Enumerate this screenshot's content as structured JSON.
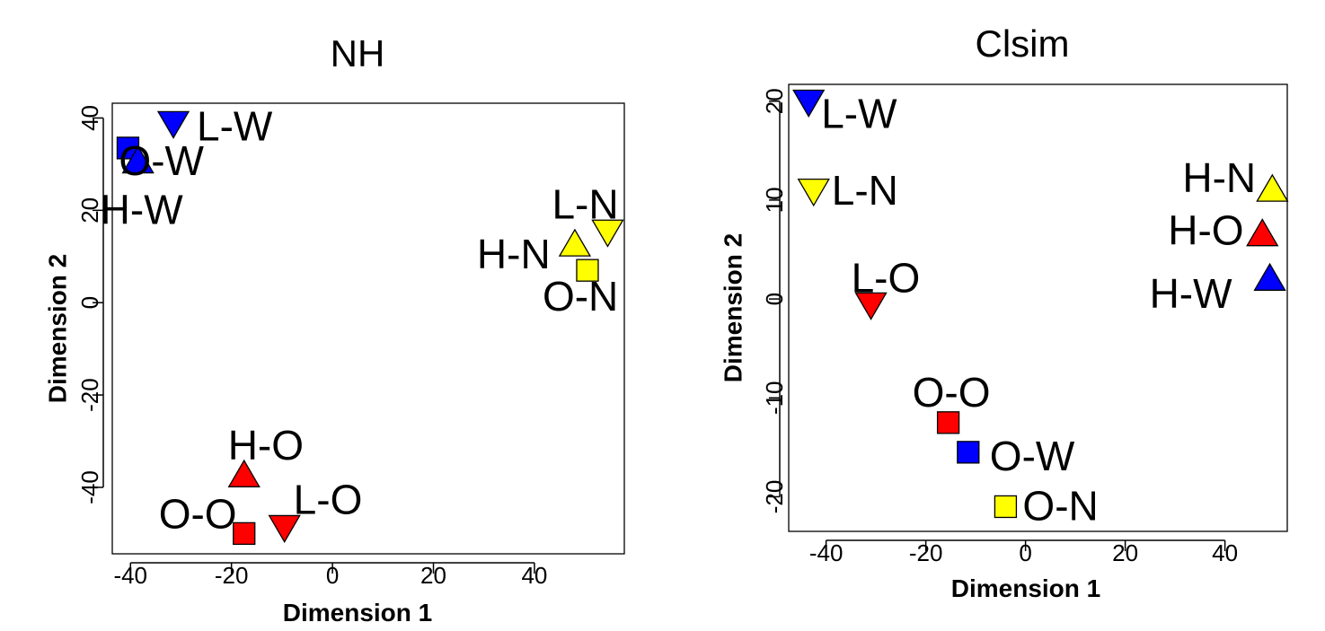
{
  "chart_data": [
    {
      "type": "scatter",
      "title": "NH",
      "xlabel": "Dimension 1",
      "ylabel": "Dimension 2",
      "xlim": [
        -43.6,
        57.8
      ],
      "ylim": [
        -54.4,
        43.2
      ],
      "xticks": [
        -40,
        -20,
        0,
        20,
        40
      ],
      "yticks": [
        -40,
        -20,
        0,
        20,
        40
      ],
      "x_tick_labels": [
        "-40",
        "-20",
        "0",
        "20",
        "40"
      ],
      "y_tick_labels": [
        "-40",
        "-20",
        "0",
        "20",
        "40"
      ],
      "grid": false,
      "points": [
        {
          "label": "L-W",
          "x": -31.5,
          "y": 39.0,
          "shape": "triangle-down",
          "color": "#0000FF"
        },
        {
          "label": "O-W",
          "x": -40.5,
          "y": 33.5,
          "shape": "square",
          "color": "#0000FF"
        },
        {
          "label": "H-W",
          "x": -38.5,
          "y": 30.5,
          "shape": "triangle-up",
          "color": "#0000FF"
        },
        {
          "label": "L-N",
          "x": 54.5,
          "y": 15.5,
          "shape": "triangle-down",
          "color": "#FFFF00"
        },
        {
          "label": "H-N",
          "x": 48.0,
          "y": 12.5,
          "shape": "triangle-up",
          "color": "#FFFF00"
        },
        {
          "label": "O-N",
          "x": 50.5,
          "y": 7.0,
          "shape": "square",
          "color": "#FFFF00"
        },
        {
          "label": "H-O",
          "x": -17.5,
          "y": -37.5,
          "shape": "triangle-up",
          "color": "#FF0000"
        },
        {
          "label": "O-O",
          "x": -17.5,
          "y": -50.0,
          "shape": "square",
          "color": "#FF0000"
        },
        {
          "label": "L-O",
          "x": -9.5,
          "y": -48.5,
          "shape": "triangle-down",
          "color": "#FF0000"
        }
      ]
    },
    {
      "type": "scatter",
      "title": "Clsim",
      "xlabel": "Dimension 1",
      "ylabel": "Dimension 2",
      "xlim": [
        -47.5,
        52.5
      ],
      "ylim": [
        -23.5,
        21.7
      ],
      "xticks": [
        -40,
        -20,
        0,
        20,
        40
      ],
      "yticks": [
        -20,
        -10,
        0,
        10,
        20
      ],
      "x_tick_labels": [
        "-40",
        "-20",
        "0",
        "20",
        "40"
      ],
      "y_tick_labels": [
        "-20",
        "-10",
        "0",
        "10",
        "20"
      ],
      "grid": false,
      "points": [
        {
          "label": "L-W",
          "x": -43.5,
          "y": 20.0,
          "shape": "triangle-down",
          "color": "#0000FF"
        },
        {
          "label": "L-N",
          "x": -42.5,
          "y": 11.0,
          "shape": "triangle-down",
          "color": "#FFFF00"
        },
        {
          "label": "L-O",
          "x": -31.0,
          "y": -0.5,
          "shape": "triangle-down",
          "color": "#FF0000"
        },
        {
          "label": "H-N",
          "x": 49.5,
          "y": 11.0,
          "shape": "triangle-up",
          "color": "#FFFF00"
        },
        {
          "label": "H-O",
          "x": 47.5,
          "y": 6.5,
          "shape": "triangle-up",
          "color": "#FF0000"
        },
        {
          "label": "H-W",
          "x": 49.0,
          "y": 2.0,
          "shape": "triangle-up",
          "color": "#0000FF"
        },
        {
          "label": "O-O",
          "x": -15.5,
          "y": -12.5,
          "shape": "square",
          "color": "#FF0000"
        },
        {
          "label": "O-W",
          "x": -11.5,
          "y": -15.5,
          "shape": "square",
          "color": "#0000FF"
        },
        {
          "label": "O-N",
          "x": -4.0,
          "y": -21.0,
          "shape": "square",
          "color": "#FFFF00"
        }
      ]
    }
  ]
}
